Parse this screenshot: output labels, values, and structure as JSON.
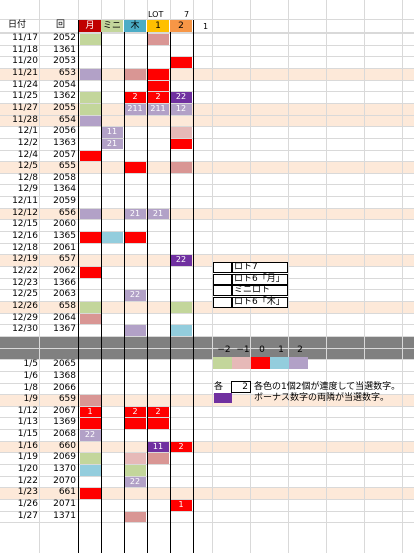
{
  "header": {
    "date_label": "日付",
    "round_label": "回",
    "col_labels": [
      "月",
      "ミニ",
      "木",
      "1",
      "2"
    ],
    "col_top": [
      "",
      "",
      "",
      "LOT",
      "7"
    ],
    "extra": "1"
  },
  "colors": {
    "red": "#ff0000",
    "pink": "#d99694",
    "green": "#c3d69b",
    "lavender": "#b2a1c7",
    "light_blue": "#93cddd",
    "light_pink": "#e6b9b8",
    "purple": "#7030a0",
    "band": "#fde9d9",
    "gray": "#808080",
    "hdr_red": "#c00000",
    "hdr_green": "#c3d69b",
    "hdr_blue": "#4bacc6",
    "hdr_yellow": "#ffc000",
    "hdr_orange": "#f79646"
  },
  "rows": [
    {
      "date": "11/17",
      "round": "2052",
      "band": false,
      "cells": [
        "green",
        "",
        "",
        "pink",
        ""
      ],
      "marks": [
        "",
        "",
        "",
        "",
        ""
      ]
    },
    {
      "date": "11/18",
      "round": "1361",
      "band": false,
      "cells": [
        "",
        "",
        "",
        "",
        ""
      ],
      "marks": [
        "",
        "",
        "",
        "",
        ""
      ]
    },
    {
      "date": "11/20",
      "round": "2053",
      "band": false,
      "cells": [
        "",
        "",
        "",
        "",
        "red"
      ],
      "marks": [
        "",
        "",
        "",
        "",
        ""
      ]
    },
    {
      "date": "11/21",
      "round": "653",
      "band": true,
      "cells": [
        "lavender",
        "",
        "pink",
        "red",
        ""
      ],
      "marks": [
        "",
        "",
        "",
        "",
        ""
      ]
    },
    {
      "date": "11/24",
      "round": "2054",
      "band": false,
      "cells": [
        "",
        "",
        "",
        "red",
        ""
      ],
      "marks": [
        "",
        "",
        "",
        "",
        ""
      ]
    },
    {
      "date": "11/25",
      "round": "1362",
      "band": false,
      "cells": [
        "green",
        "",
        "red",
        "red",
        "purple"
      ],
      "marks": [
        "",
        "",
        "2",
        "2",
        "22"
      ]
    },
    {
      "date": "11/27",
      "round": "2055",
      "band": true,
      "cells": [
        "green",
        "",
        "lavender",
        "lavender",
        "lavender"
      ],
      "marks": [
        "",
        "",
        "211",
        "211",
        "12"
      ]
    },
    {
      "date": "11/28",
      "round": "654",
      "band": true,
      "cells": [
        "lavender",
        "",
        "",
        "",
        ""
      ],
      "marks": [
        "",
        "",
        "",
        "",
        ""
      ]
    },
    {
      "date": "12/1",
      "round": "2056",
      "band": false,
      "cells": [
        "",
        "lavender",
        "",
        "",
        "light_pink"
      ],
      "marks": [
        "",
        "11",
        "",
        "",
        ""
      ]
    },
    {
      "date": "12/2",
      "round": "1363",
      "band": false,
      "cells": [
        "",
        "lavender",
        "",
        "",
        "red"
      ],
      "marks": [
        "",
        "21",
        "",
        "",
        ""
      ]
    },
    {
      "date": "12/4",
      "round": "2057",
      "band": false,
      "cells": [
        "red",
        "",
        "",
        "",
        ""
      ],
      "marks": [
        "",
        "",
        "",
        "",
        ""
      ]
    },
    {
      "date": "12/5",
      "round": "655",
      "band": true,
      "cells": [
        "",
        "",
        "red",
        "",
        "pink"
      ],
      "marks": [
        "",
        "",
        "",
        "",
        ""
      ]
    },
    {
      "date": "12/8",
      "round": "2058",
      "band": false,
      "cells": [
        "",
        "",
        "",
        "",
        ""
      ],
      "marks": [
        "",
        "",
        "",
        "",
        ""
      ]
    },
    {
      "date": "12/9",
      "round": "1364",
      "band": false,
      "cells": [
        "",
        "",
        "",
        "",
        ""
      ],
      "marks": [
        "",
        "",
        "",
        "",
        ""
      ]
    },
    {
      "date": "12/11",
      "round": "2059",
      "band": false,
      "cells": [
        "",
        "",
        "",
        "",
        ""
      ],
      "marks": [
        "",
        "",
        "",
        "",
        ""
      ]
    },
    {
      "date": "12/12",
      "round": "656",
      "band": true,
      "cells": [
        "lavender",
        "",
        "lavender",
        "lavender",
        ""
      ],
      "marks": [
        "",
        "",
        "21",
        "21",
        ""
      ]
    },
    {
      "date": "12/15",
      "round": "2060",
      "band": false,
      "cells": [
        "",
        "",
        "",
        "",
        ""
      ],
      "marks": [
        "",
        "",
        "",
        "",
        ""
      ]
    },
    {
      "date": "12/16",
      "round": "1365",
      "band": false,
      "cells": [
        "red",
        "light_blue",
        "red",
        "",
        ""
      ],
      "marks": [
        "",
        "",
        "",
        "",
        ""
      ]
    },
    {
      "date": "12/18",
      "round": "2061",
      "band": false,
      "cells": [
        "",
        "",
        "",
        "",
        ""
      ],
      "marks": [
        "",
        "",
        "",
        "",
        ""
      ]
    },
    {
      "date": "12/19",
      "round": "657",
      "band": true,
      "cells": [
        "",
        "",
        "",
        "",
        "purple"
      ],
      "marks": [
        "",
        "",
        "",
        "",
        "22"
      ]
    },
    {
      "date": "12/22",
      "round": "2062",
      "band": false,
      "cells": [
        "red",
        "",
        "",
        "",
        ""
      ],
      "marks": [
        "",
        "",
        "",
        "",
        ""
      ]
    },
    {
      "date": "12/23",
      "round": "1366",
      "band": false,
      "cells": [
        "",
        "",
        "",
        "",
        ""
      ],
      "marks": [
        "",
        "",
        "",
        "",
        ""
      ]
    },
    {
      "date": "12/25",
      "round": "2063",
      "band": false,
      "cells": [
        "",
        "",
        "lavender",
        "",
        ""
      ],
      "marks": [
        "",
        "",
        "22",
        "",
        ""
      ]
    },
    {
      "date": "12/26",
      "round": "658",
      "band": true,
      "cells": [
        "green",
        "",
        "",
        "",
        "green"
      ],
      "marks": [
        "",
        "",
        "",
        "",
        ""
      ]
    },
    {
      "date": "12/29",
      "round": "2064",
      "band": false,
      "cells": [
        "pink",
        "",
        "",
        "",
        ""
      ],
      "marks": [
        "",
        "",
        "",
        "",
        ""
      ]
    },
    {
      "date": "12/30",
      "round": "1367",
      "band": false,
      "cells": [
        "",
        "",
        "lavender",
        "",
        "light_blue"
      ],
      "marks": [
        "",
        "",
        "",
        "",
        ""
      ]
    },
    {
      "date": "",
      "round": "",
      "band": "gray",
      "cells": [
        "",
        "",
        "",
        "",
        ""
      ],
      "marks": [
        "",
        "",
        "",
        "",
        ""
      ]
    },
    {
      "date": "",
      "round": "",
      "band": "gray",
      "cells": [
        "",
        "",
        "",
        "",
        ""
      ],
      "marks": [
        "",
        "",
        "",
        "",
        ""
      ]
    },
    {
      "date": "1/5",
      "round": "2065",
      "band": false,
      "cells": [
        "",
        "",
        "",
        "",
        ""
      ],
      "marks": [
        "",
        "",
        "",
        "",
        ""
      ]
    },
    {
      "date": "1/6",
      "round": "1368",
      "band": false,
      "cells": [
        "",
        "",
        "",
        "",
        ""
      ],
      "marks": [
        "",
        "",
        "",
        "",
        ""
      ]
    },
    {
      "date": "1/8",
      "round": "2066",
      "band": false,
      "cells": [
        "",
        "",
        "",
        "",
        ""
      ],
      "marks": [
        "",
        "",
        "",
        "",
        ""
      ]
    },
    {
      "date": "1/9",
      "round": "659",
      "band": true,
      "cells": [
        "pink",
        "",
        "",
        "",
        ""
      ],
      "marks": [
        "",
        "",
        "",
        "",
        ""
      ]
    },
    {
      "date": "1/12",
      "round": "2067",
      "band": false,
      "cells": [
        "red",
        "",
        "red",
        "red",
        ""
      ],
      "marks": [
        "1",
        "",
        "2",
        "2",
        ""
      ]
    },
    {
      "date": "1/13",
      "round": "1369",
      "band": false,
      "cells": [
        "red",
        "",
        "red",
        "red",
        ""
      ],
      "marks": [
        "",
        "",
        "",
        "",
        ""
      ]
    },
    {
      "date": "1/15",
      "round": "2068",
      "band": false,
      "cells": [
        "lavender",
        "",
        "",
        "",
        ""
      ],
      "marks": [
        "22",
        "",
        "",
        "",
        ""
      ]
    },
    {
      "date": "1/16",
      "round": "660",
      "band": true,
      "cells": [
        "",
        "",
        "",
        "purple",
        "red"
      ],
      "marks": [
        "",
        "",
        "",
        "11",
        "2"
      ]
    },
    {
      "date": "1/19",
      "round": "2069",
      "band": false,
      "cells": [
        "green",
        "",
        "light_pink",
        "pink",
        ""
      ],
      "marks": [
        "",
        "",
        "",
        "",
        ""
      ]
    },
    {
      "date": "1/20",
      "round": "1370",
      "band": false,
      "cells": [
        "light_blue",
        "",
        "green",
        "",
        ""
      ],
      "marks": [
        "",
        "",
        "",
        "",
        ""
      ]
    },
    {
      "date": "1/22",
      "round": "2070",
      "band": false,
      "cells": [
        "",
        "",
        "lavender",
        "",
        ""
      ],
      "marks": [
        "",
        "",
        "22",
        "",
        ""
      ]
    },
    {
      "date": "1/23",
      "round": "661",
      "band": true,
      "cells": [
        "red",
        "",
        "",
        "",
        ""
      ],
      "marks": [
        "",
        "",
        "",
        "",
        ""
      ]
    },
    {
      "date": "1/26",
      "round": "2071",
      "band": false,
      "cells": [
        "",
        "",
        "",
        "",
        "red"
      ],
      "marks": [
        "",
        "",
        "",
        "",
        "1"
      ]
    },
    {
      "date": "1/27",
      "round": "1371",
      "band": false,
      "cells": [
        "",
        "",
        "pink",
        "",
        ""
      ],
      "marks": [
        "",
        "",
        "",
        "",
        ""
      ]
    }
  ],
  "legend": {
    "items": [
      "ロト7",
      "ロト6「月」",
      "ミニロト",
      "ロト6「木」"
    ],
    "scale_labels": [
      "−2",
      "−1",
      "0",
      "1",
      "2"
    ],
    "scale_colors": [
      "green",
      "light_pink",
      "red",
      "light_blue",
      "lavender"
    ]
  },
  "notes": {
    "each_label": "各",
    "each_value": "2",
    "line1": "各色の1個2個が連度して当選数字。",
    "line2": "ボーナス数字の両隣が当選数字。"
  }
}
